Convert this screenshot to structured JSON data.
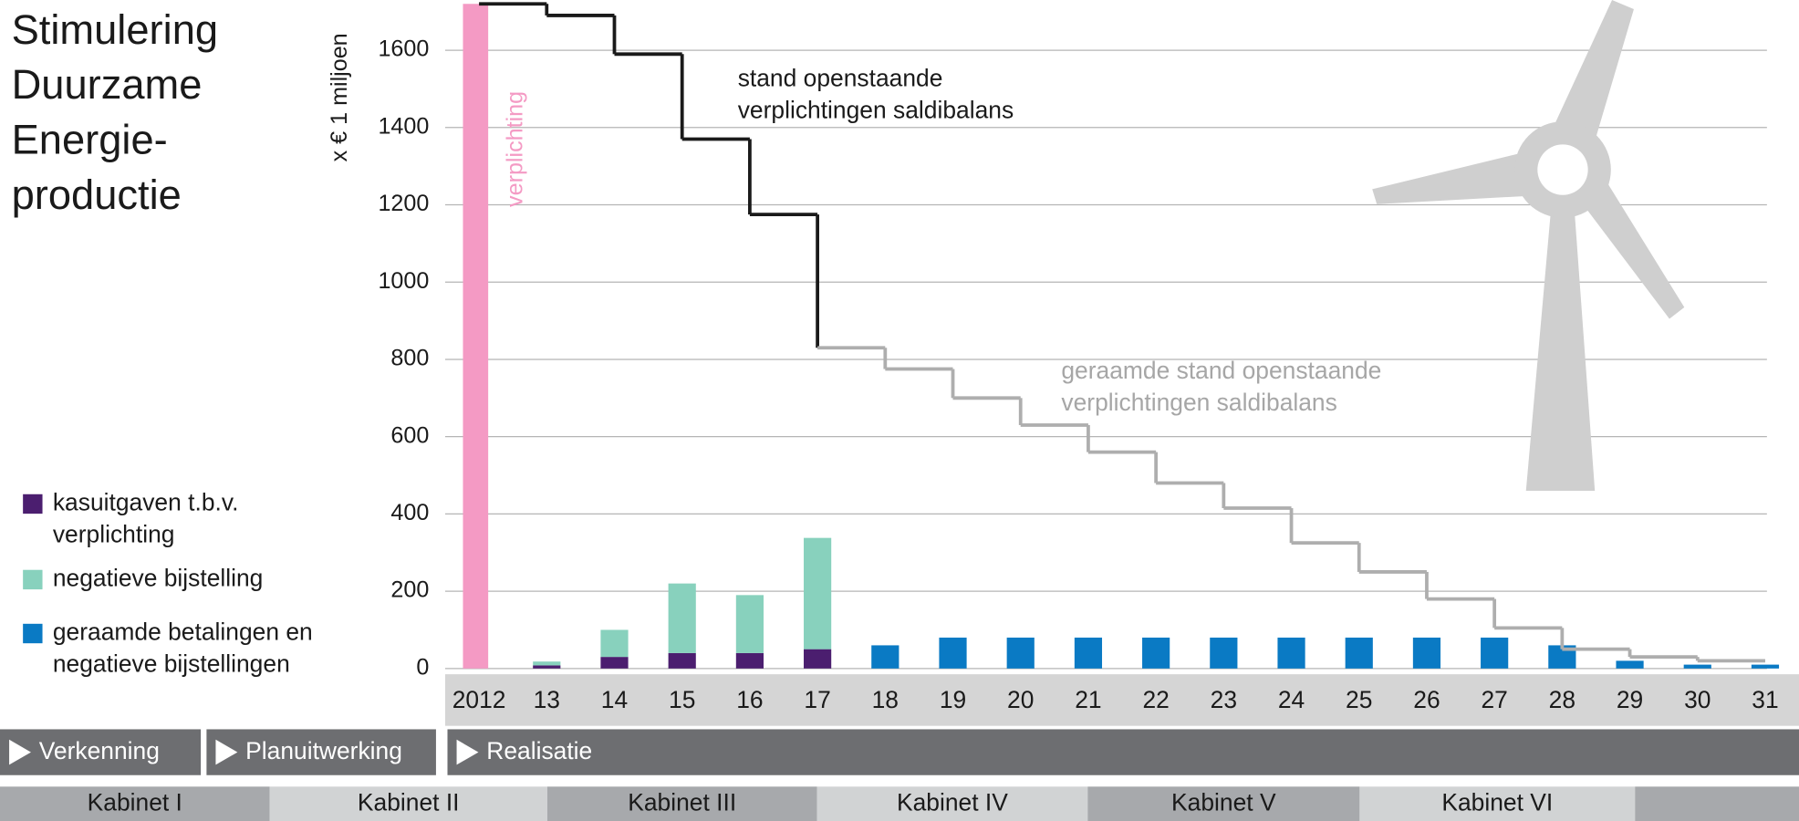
{
  "chart_data": {
    "type": "bar",
    "title": "Stimulering Duurzame Energie-productie",
    "y_label": "x € 1 miljoen",
    "categories": [
      "2012",
      "13",
      "14",
      "15",
      "16",
      "17",
      "18",
      "19",
      "20",
      "21",
      "22",
      "23",
      "24",
      "25",
      "26",
      "27",
      "28",
      "29",
      "30",
      "31"
    ],
    "series": [
      {
        "name": "kasuitgaven t.b.v. verplichting",
        "color": "#4b1e6f",
        "values": [
          null,
          8,
          30,
          40,
          40,
          50,
          null,
          null,
          null,
          null,
          null,
          null,
          null,
          null,
          null,
          null,
          null,
          null,
          null,
          null
        ]
      },
      {
        "name": "negatieve bijstelling",
        "color": "#88d1bd",
        "values": [
          null,
          10,
          70,
          180,
          150,
          288,
          null,
          null,
          null,
          null,
          null,
          null,
          null,
          null,
          null,
          null,
          null,
          null,
          null,
          null
        ]
      },
      {
        "name": "geraamde betalingen en negatieve bijstellingen",
        "color": "#0a7ac4",
        "values": [
          null,
          null,
          null,
          null,
          null,
          null,
          60,
          80,
          80,
          80,
          80,
          80,
          80,
          80,
          80,
          80,
          60,
          20,
          10,
          10
        ]
      }
    ],
    "commitment": {
      "name": "verplichting",
      "color": "#f49ac4",
      "values": [
        1720,
        null,
        null,
        null,
        null,
        null,
        null,
        null,
        null,
        null,
        null,
        null,
        null,
        null,
        null,
        null,
        null,
        null,
        null,
        null
      ]
    },
    "balance_lines": [
      {
        "name": "stand openstaande verplichtingen saldibalans",
        "color": "#1a1a1a",
        "values": [
          1720,
          1720,
          1690,
          1590,
          1370,
          1175,
          null,
          null,
          null,
          null,
          null,
          null,
          null,
          null,
          null,
          null,
          null,
          null,
          null,
          null
        ]
      },
      {
        "name": "geraamde stand openstaande verplichtingen saldibalans",
        "color": "#aeaeae",
        "values": [
          null,
          null,
          null,
          null,
          null,
          null,
          830,
          775,
          700,
          630,
          560,
          480,
          415,
          325,
          250,
          180,
          105,
          50,
          30,
          20
        ]
      }
    ],
    "ylim": [
      0,
      1730
    ],
    "yticks": [
      0,
      200,
      400,
      600,
      800,
      1000,
      1200,
      1400,
      1600
    ],
    "grid": true
  },
  "phases": [
    "Verkenning",
    "Planuitwerking",
    "Realisatie"
  ],
  "cabinets": [
    "Kabinet I",
    "Kabinet II",
    "Kabinet III",
    "Kabinet IV",
    "Kabinet V",
    "Kabinet VI"
  ]
}
